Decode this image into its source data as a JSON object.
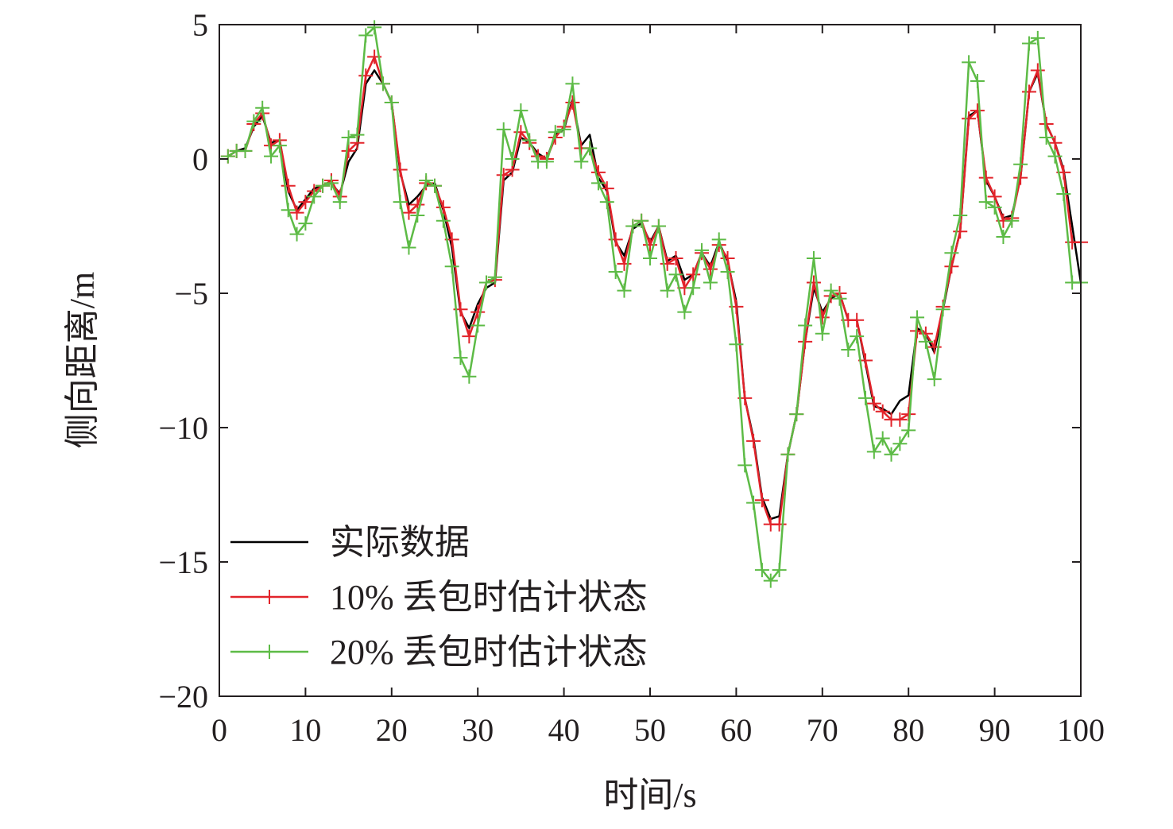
{
  "chart_data": {
    "type": "line",
    "xlabel": "时间/s",
    "ylabel": "侧向距离/m",
    "xlim": [
      0,
      100
    ],
    "ylim": [
      -20,
      5
    ],
    "xticks": [
      "0",
      "10",
      "20",
      "30",
      "40",
      "50",
      "60",
      "70",
      "80",
      "90",
      "100"
    ],
    "yticks": [
      "5",
      "0",
      "−5",
      "−10",
      "−15",
      "−20"
    ],
    "legend_position": "bottom-left",
    "grid": false,
    "x": [
      1,
      2,
      3,
      4,
      5,
      6,
      7,
      8,
      9,
      10,
      11,
      12,
      13,
      14,
      15,
      16,
      17,
      18,
      19,
      20,
      21,
      22,
      23,
      24,
      25,
      26,
      27,
      28,
      29,
      30,
      31,
      32,
      33,
      34,
      35,
      36,
      37,
      38,
      39,
      40,
      41,
      42,
      43,
      44,
      45,
      46,
      47,
      48,
      49,
      50,
      51,
      52,
      53,
      54,
      55,
      56,
      57,
      58,
      59,
      60,
      61,
      62,
      63,
      64,
      65,
      66,
      67,
      68,
      69,
      70,
      71,
      72,
      73,
      74,
      75,
      76,
      77,
      78,
      79,
      80,
      81,
      82,
      83,
      84,
      85,
      86,
      87,
      88,
      89,
      90,
      91,
      92,
      93,
      94,
      95,
      96,
      97,
      98,
      99,
      100
    ],
    "series": [
      {
        "name": "实际数据",
        "color": "#000000",
        "marker": "none",
        "values": [
          0.1,
          0.3,
          0.4,
          1.2,
          1.6,
          0.6,
          0.7,
          -1.2,
          -1.9,
          -1.5,
          -1.1,
          -1.0,
          -0.9,
          -1.3,
          -0.1,
          0.4,
          2.8,
          3.3,
          2.8,
          2.1,
          -0.5,
          -1.7,
          -1.4,
          -1.0,
          -0.9,
          -1.9,
          -3.3,
          -5.7,
          -6.3,
          -5.4,
          -4.8,
          -4.6,
          -0.8,
          -0.5,
          0.8,
          0.6,
          0.2,
          0.0,
          0.9,
          1.1,
          2.2,
          0.5,
          0.9,
          -0.7,
          -1.2,
          -3.1,
          -3.6,
          -2.6,
          -2.4,
          -3.1,
          -2.5,
          -3.8,
          -3.6,
          -4.5,
          -4.3,
          -3.5,
          -4.0,
          -3.1,
          -3.8,
          -5.3,
          -8.9,
          -10.4,
          -12.6,
          -13.4,
          -13.3,
          -11.0,
          -9.5,
          -6.8,
          -4.8,
          -5.7,
          -5.2,
          -5.0,
          -6.0,
          -6.0,
          -7.6,
          -9.2,
          -9.3,
          -9.5,
          -9.0,
          -8.8,
          -6.3,
          -6.5,
          -7.2,
          -5.6,
          -4.0,
          -2.7,
          1.6,
          1.8,
          -0.8,
          -1.4,
          -2.2,
          -2.1,
          -0.7,
          2.5,
          3.2,
          1.3,
          0.6,
          -0.4,
          -2.5,
          -4.6
        ]
      },
      {
        "name": "10% 丢包时估计状态",
        "color": "#e2232a",
        "marker": "+",
        "values": [
          0.1,
          0.3,
          0.3,
          1.3,
          1.7,
          0.5,
          0.7,
          -1.0,
          -2.0,
          -1.6,
          -1.2,
          -1.0,
          -0.8,
          -1.4,
          0.3,
          0.6,
          3.1,
          3.8,
          2.8,
          2.1,
          -0.4,
          -2.0,
          -1.7,
          -0.9,
          -1.0,
          -1.8,
          -3.0,
          -5.6,
          -6.6,
          -5.7,
          -4.6,
          -4.5,
          -0.6,
          -0.4,
          1.0,
          0.6,
          0.1,
          0.0,
          0.8,
          1.2,
          2.1,
          0.4,
          0.4,
          -0.5,
          -1.1,
          -3.0,
          -3.9,
          -2.5,
          -2.3,
          -3.2,
          -2.5,
          -3.9,
          -3.7,
          -4.8,
          -4.3,
          -3.5,
          -4.1,
          -3.2,
          -3.7,
          -5.5,
          -8.9,
          -10.5,
          -12.7,
          -13.6,
          -13.6,
          -11.0,
          -9.5,
          -6.8,
          -4.6,
          -5.9,
          -5.1,
          -5.0,
          -6.0,
          -6.0,
          -7.5,
          -9.1,
          -9.4,
          -9.7,
          -9.7,
          -9.5,
          -6.4,
          -6.5,
          -7.0,
          -5.5,
          -4.0,
          -2.7,
          1.5,
          1.8,
          -0.7,
          -1.4,
          -2.3,
          -2.2,
          -0.7,
          2.5,
          3.3,
          1.3,
          0.6,
          -0.5,
          -3.1,
          -3.1
        ]
      },
      {
        "name": "20% 丢包时估计状态",
        "color": "#5dbb46",
        "marker": "+",
        "values": [
          0.1,
          0.3,
          0.3,
          1.4,
          1.9,
          0.1,
          0.5,
          -1.9,
          -2.8,
          -2.4,
          -1.4,
          -1.0,
          -0.9,
          -1.6,
          0.8,
          0.9,
          4.6,
          4.9,
          2.8,
          2.1,
          -1.6,
          -3.3,
          -2.1,
          -0.8,
          -1.0,
          -2.3,
          -4.0,
          -7.4,
          -8.1,
          -6.2,
          -4.6,
          -4.4,
          1.1,
          0.0,
          1.8,
          0.7,
          -0.1,
          -0.1,
          1.0,
          1.1,
          2.8,
          -0.1,
          0.4,
          -0.9,
          -1.6,
          -4.2,
          -4.9,
          -2.5,
          -2.3,
          -3.7,
          -2.5,
          -4.9,
          -4.3,
          -5.7,
          -4.8,
          -3.4,
          -4.6,
          -3.0,
          -4.2,
          -6.9,
          -11.4,
          -12.8,
          -15.3,
          -15.7,
          -15.3,
          -11.0,
          -9.5,
          -6.2,
          -3.7,
          -6.5,
          -4.9,
          -5.2,
          -7.1,
          -6.6,
          -8.9,
          -10.9,
          -10.4,
          -11.0,
          -10.6,
          -10.1,
          -5.9,
          -6.8,
          -8.2,
          -5.6,
          -3.5,
          -2.1,
          3.6,
          2.9,
          -1.6,
          -1.8,
          -2.9,
          -2.3,
          -0.2,
          4.3,
          4.5,
          0.8,
          0.1,
          -1.3,
          -4.6,
          -4.6
        ]
      }
    ]
  }
}
